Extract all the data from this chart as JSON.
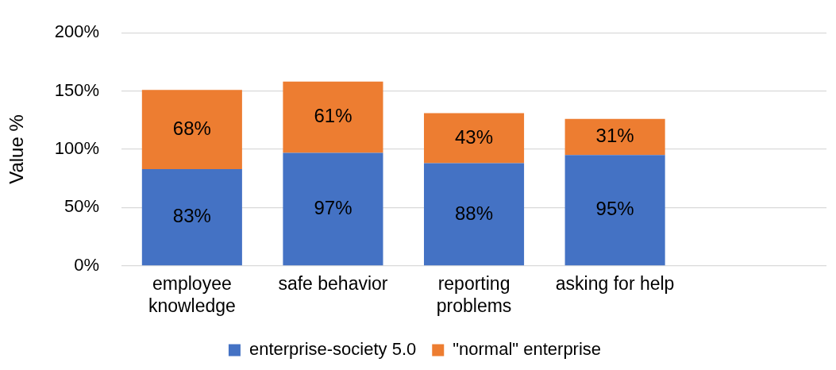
{
  "chart_data": {
    "type": "bar",
    "stacked": true,
    "ylabel": "Value %",
    "categories": [
      "employee knowledge",
      "safe behavior",
      "reporting problems",
      "asking for help",
      null
    ],
    "series": [
      {
        "name": "enterprise-society 5.0",
        "color": "#4472c4",
        "values": [
          83,
          97,
          88,
          95,
          null
        ],
        "value_labels": [
          "83%",
          "97%",
          "88%",
          "95%",
          null
        ]
      },
      {
        "name": "\"normal\" enterprise",
        "color": "#ed7d31",
        "values": [
          68,
          61,
          43,
          31,
          null
        ],
        "value_labels": [
          "68%",
          "61%",
          "43%",
          "31%",
          null
        ]
      }
    ],
    "ylim": [
      0,
      200
    ],
    "yticks": [
      {
        "value": 0,
        "label": "0%"
      },
      {
        "value": 50,
        "label": "50%"
      },
      {
        "value": 100,
        "label": "100%"
      },
      {
        "value": 150,
        "label": "150%"
      },
      {
        "value": 200,
        "label": "200%"
      }
    ],
    "grid": "y",
    "legend": "bottom"
  }
}
